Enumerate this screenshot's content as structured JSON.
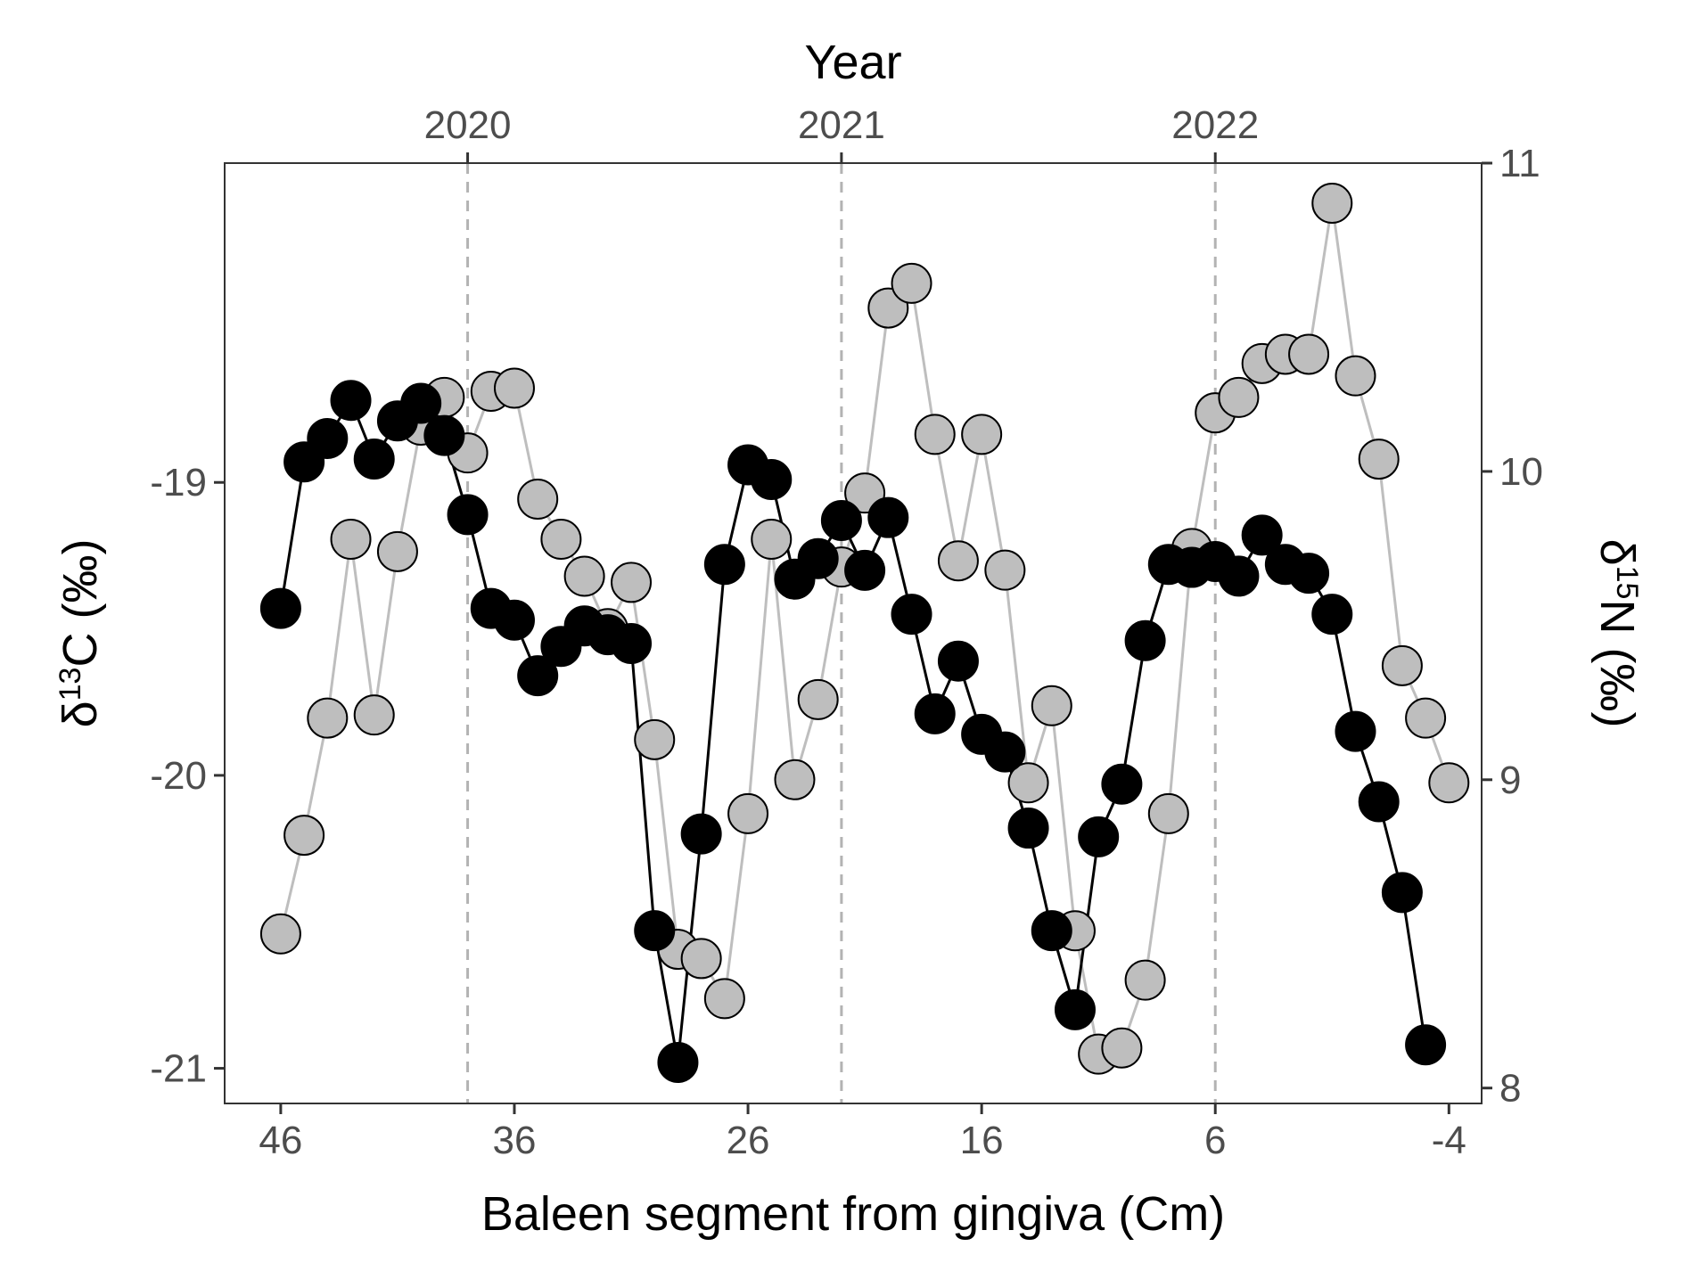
{
  "chart_data": {
    "type": "line",
    "title": "",
    "x_axis": {
      "label": "Baleen segment from gingiva (Cm)",
      "range": [
        48.4,
        -5.4
      ],
      "reversed": true,
      "ticks": [
        46,
        36,
        26,
        16,
        6,
        -4
      ],
      "tick_labels": [
        "46",
        "36",
        "26",
        "16",
        "6",
        "-4"
      ]
    },
    "x_axis_top": {
      "label": "Year",
      "ticks_at_segment": [
        38,
        22,
        6
      ],
      "tick_labels": [
        "2020",
        "2021",
        "2022"
      ]
    },
    "y_axis_left": {
      "label_prefix": "δ",
      "label_sup": "13",
      "label_suffix": "C (‰)",
      "range": [
        -21.12,
        -17.91
      ],
      "ticks": [
        -21,
        -20,
        -19
      ],
      "tick_labels": [
        "-21",
        "-20",
        "-19"
      ]
    },
    "y_axis_right": {
      "label_prefix": "δ",
      "label_sup": "15",
      "label_suffix": "N (‰)",
      "range": [
        7.95,
        11.0
      ],
      "ticks": [
        8,
        9,
        10,
        11
      ],
      "tick_labels": [
        "8",
        "9",
        "10",
        "11"
      ]
    },
    "grid": false,
    "vertical_reference_lines": [
      38,
      22,
      6
    ],
    "series": [
      {
        "axis": "left",
        "color": "#000000",
        "line_color": "#000000",
        "points": [
          [
            46,
            -19.43
          ],
          [
            45,
            -18.93
          ],
          [
            44,
            -18.85
          ],
          [
            43,
            -18.72
          ],
          [
            42,
            -18.92
          ],
          [
            41,
            -18.79
          ],
          [
            40,
            -18.73
          ],
          [
            39,
            -18.84
          ],
          [
            38,
            -19.11
          ],
          [
            37,
            -19.43
          ],
          [
            36,
            -19.47
          ],
          [
            35,
            -19.66
          ],
          [
            34,
            -19.56
          ],
          [
            33,
            -19.49
          ],
          [
            32,
            -19.52
          ],
          [
            31,
            -19.55
          ],
          [
            30,
            -20.53
          ],
          [
            29,
            -20.98
          ],
          [
            28,
            -20.2
          ],
          [
            27,
            -19.28
          ],
          [
            26,
            -18.94
          ],
          [
            25,
            -18.99
          ],
          [
            24,
            -19.33
          ],
          [
            23,
            -19.26
          ],
          [
            22,
            -19.13
          ],
          [
            21,
            -19.3
          ],
          [
            20,
            -19.12
          ],
          [
            19,
            -19.45
          ],
          [
            18,
            -19.79
          ],
          [
            17,
            -19.61
          ],
          [
            16,
            -19.86
          ],
          [
            15,
            -19.92
          ],
          [
            14,
            -20.18
          ],
          [
            13,
            -20.53
          ],
          [
            12,
            -20.8
          ],
          [
            11,
            -20.21
          ],
          [
            10,
            -20.03
          ],
          [
            9,
            -19.54
          ],
          [
            8,
            -19.28
          ],
          [
            7,
            -19.29
          ],
          [
            6,
            -19.27
          ],
          [
            5,
            -19.32
          ],
          [
            4,
            -19.18
          ],
          [
            3,
            -19.28
          ],
          [
            2,
            -19.31
          ],
          [
            1,
            -19.45
          ],
          [
            0,
            -19.85
          ],
          [
            -1,
            -20.09
          ],
          [
            -2,
            -20.4
          ],
          [
            -3,
            -20.92
          ]
        ]
      },
      {
        "axis": "right",
        "color": "#bebebe",
        "line_color": "#bebebe",
        "points": [
          [
            46,
            8.5
          ],
          [
            45,
            8.82
          ],
          [
            44,
            9.2
          ],
          [
            43,
            9.78
          ],
          [
            42,
            9.21
          ],
          [
            41,
            9.74
          ],
          [
            40,
            10.15
          ],
          [
            39,
            10.24
          ],
          [
            38,
            10.06
          ],
          [
            37,
            10.26
          ],
          [
            36,
            10.27
          ],
          [
            35,
            9.91
          ],
          [
            34,
            9.78
          ],
          [
            33,
            9.66
          ],
          [
            32,
            9.49
          ],
          [
            31,
            9.64
          ],
          [
            30,
            9.13
          ],
          [
            29,
            8.45
          ],
          [
            28,
            8.42
          ],
          [
            27,
            8.29
          ],
          [
            26,
            8.89
          ],
          [
            25,
            9.78
          ],
          [
            24,
            9.0
          ],
          [
            23,
            9.26
          ],
          [
            22,
            9.69
          ],
          [
            21,
            9.93
          ],
          [
            20,
            10.53
          ],
          [
            19,
            10.61
          ],
          [
            18,
            10.12
          ],
          [
            17,
            9.71
          ],
          [
            16,
            10.12
          ],
          [
            15,
            9.68
          ],
          [
            14,
            8.99
          ],
          [
            13,
            9.24
          ],
          [
            12,
            8.51
          ],
          [
            11,
            8.11
          ],
          [
            10,
            8.13
          ],
          [
            9,
            8.35
          ],
          [
            8,
            8.89
          ],
          [
            7,
            9.75
          ],
          [
            6,
            10.19
          ],
          [
            5,
            10.24
          ],
          [
            4,
            10.35
          ],
          [
            3,
            10.38
          ],
          [
            2,
            10.38
          ],
          [
            1,
            10.87
          ],
          [
            0,
            10.31
          ],
          [
            -1,
            10.04
          ],
          [
            -2,
            9.37
          ],
          [
            -3,
            9.2
          ],
          [
            -4,
            8.99
          ]
        ]
      }
    ]
  }
}
